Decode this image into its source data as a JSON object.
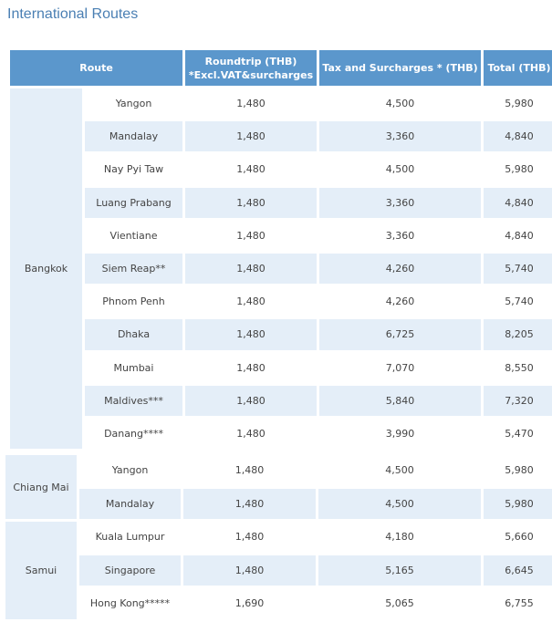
{
  "title": "International Routes",
  "header": {
    "route": "Route",
    "roundtrip_line1": "Roundtrip (THB)",
    "roundtrip_line2": "*Excl.VAT&surcharges",
    "tax": "Tax and Surcharges * (THB)",
    "total": "Total (THB)"
  },
  "groups": [
    {
      "origin": "Bangkok",
      "rows": [
        {
          "destination": "Yangon",
          "roundtrip": "1,480",
          "tax": "4,500",
          "total": "5,980"
        },
        {
          "destination": "Mandalay",
          "roundtrip": "1,480",
          "tax": "3,360",
          "total": "4,840"
        },
        {
          "destination": "Nay Pyi Taw",
          "roundtrip": "1,480",
          "tax": "4,500",
          "total": "5,980"
        },
        {
          "destination": "Luang Prabang",
          "roundtrip": "1,480",
          "tax": "3,360",
          "total": "4,840"
        },
        {
          "destination": "Vientiane",
          "roundtrip": "1,480",
          "tax": "3,360",
          "total": "4,840"
        },
        {
          "destination": "Siem Reap**",
          "roundtrip": "1,480",
          "tax": "4,260",
          "total": "5,740"
        },
        {
          "destination": "Phnom Penh",
          "roundtrip": "1,480",
          "tax": "4,260",
          "total": "5,740"
        },
        {
          "destination": "Dhaka",
          "roundtrip": "1,480",
          "tax": "6,725",
          "total": "8,205"
        },
        {
          "destination": "Mumbai",
          "roundtrip": "1,480",
          "tax": "7,070",
          "total": "8,550"
        },
        {
          "destination": "Maldives***",
          "roundtrip": "1,480",
          "tax": "5,840",
          "total": "7,320"
        },
        {
          "destination": "Danang****",
          "roundtrip": "1,480",
          "tax": "3,990",
          "total": "5,470"
        }
      ]
    },
    {
      "origin": "Chiang Mai",
      "rows": [
        {
          "destination": "Yangon",
          "roundtrip": "1,480",
          "tax": "4,500",
          "total": "5,980"
        },
        {
          "destination": "Mandalay",
          "roundtrip": "1,480",
          "tax": "4,500",
          "total": "5,980"
        }
      ]
    },
    {
      "origin": "Samui",
      "rows": [
        {
          "destination": "Kuala Lumpur",
          "roundtrip": "1,480",
          "tax": "4,180",
          "total": "5,660"
        },
        {
          "destination": "Singapore",
          "roundtrip": "1,480",
          "tax": "5,165",
          "total": "6,645"
        },
        {
          "destination": "Hong Kong*****",
          "roundtrip": "1,690",
          "tax": "5,065",
          "total": "6,755"
        }
      ]
    }
  ]
}
